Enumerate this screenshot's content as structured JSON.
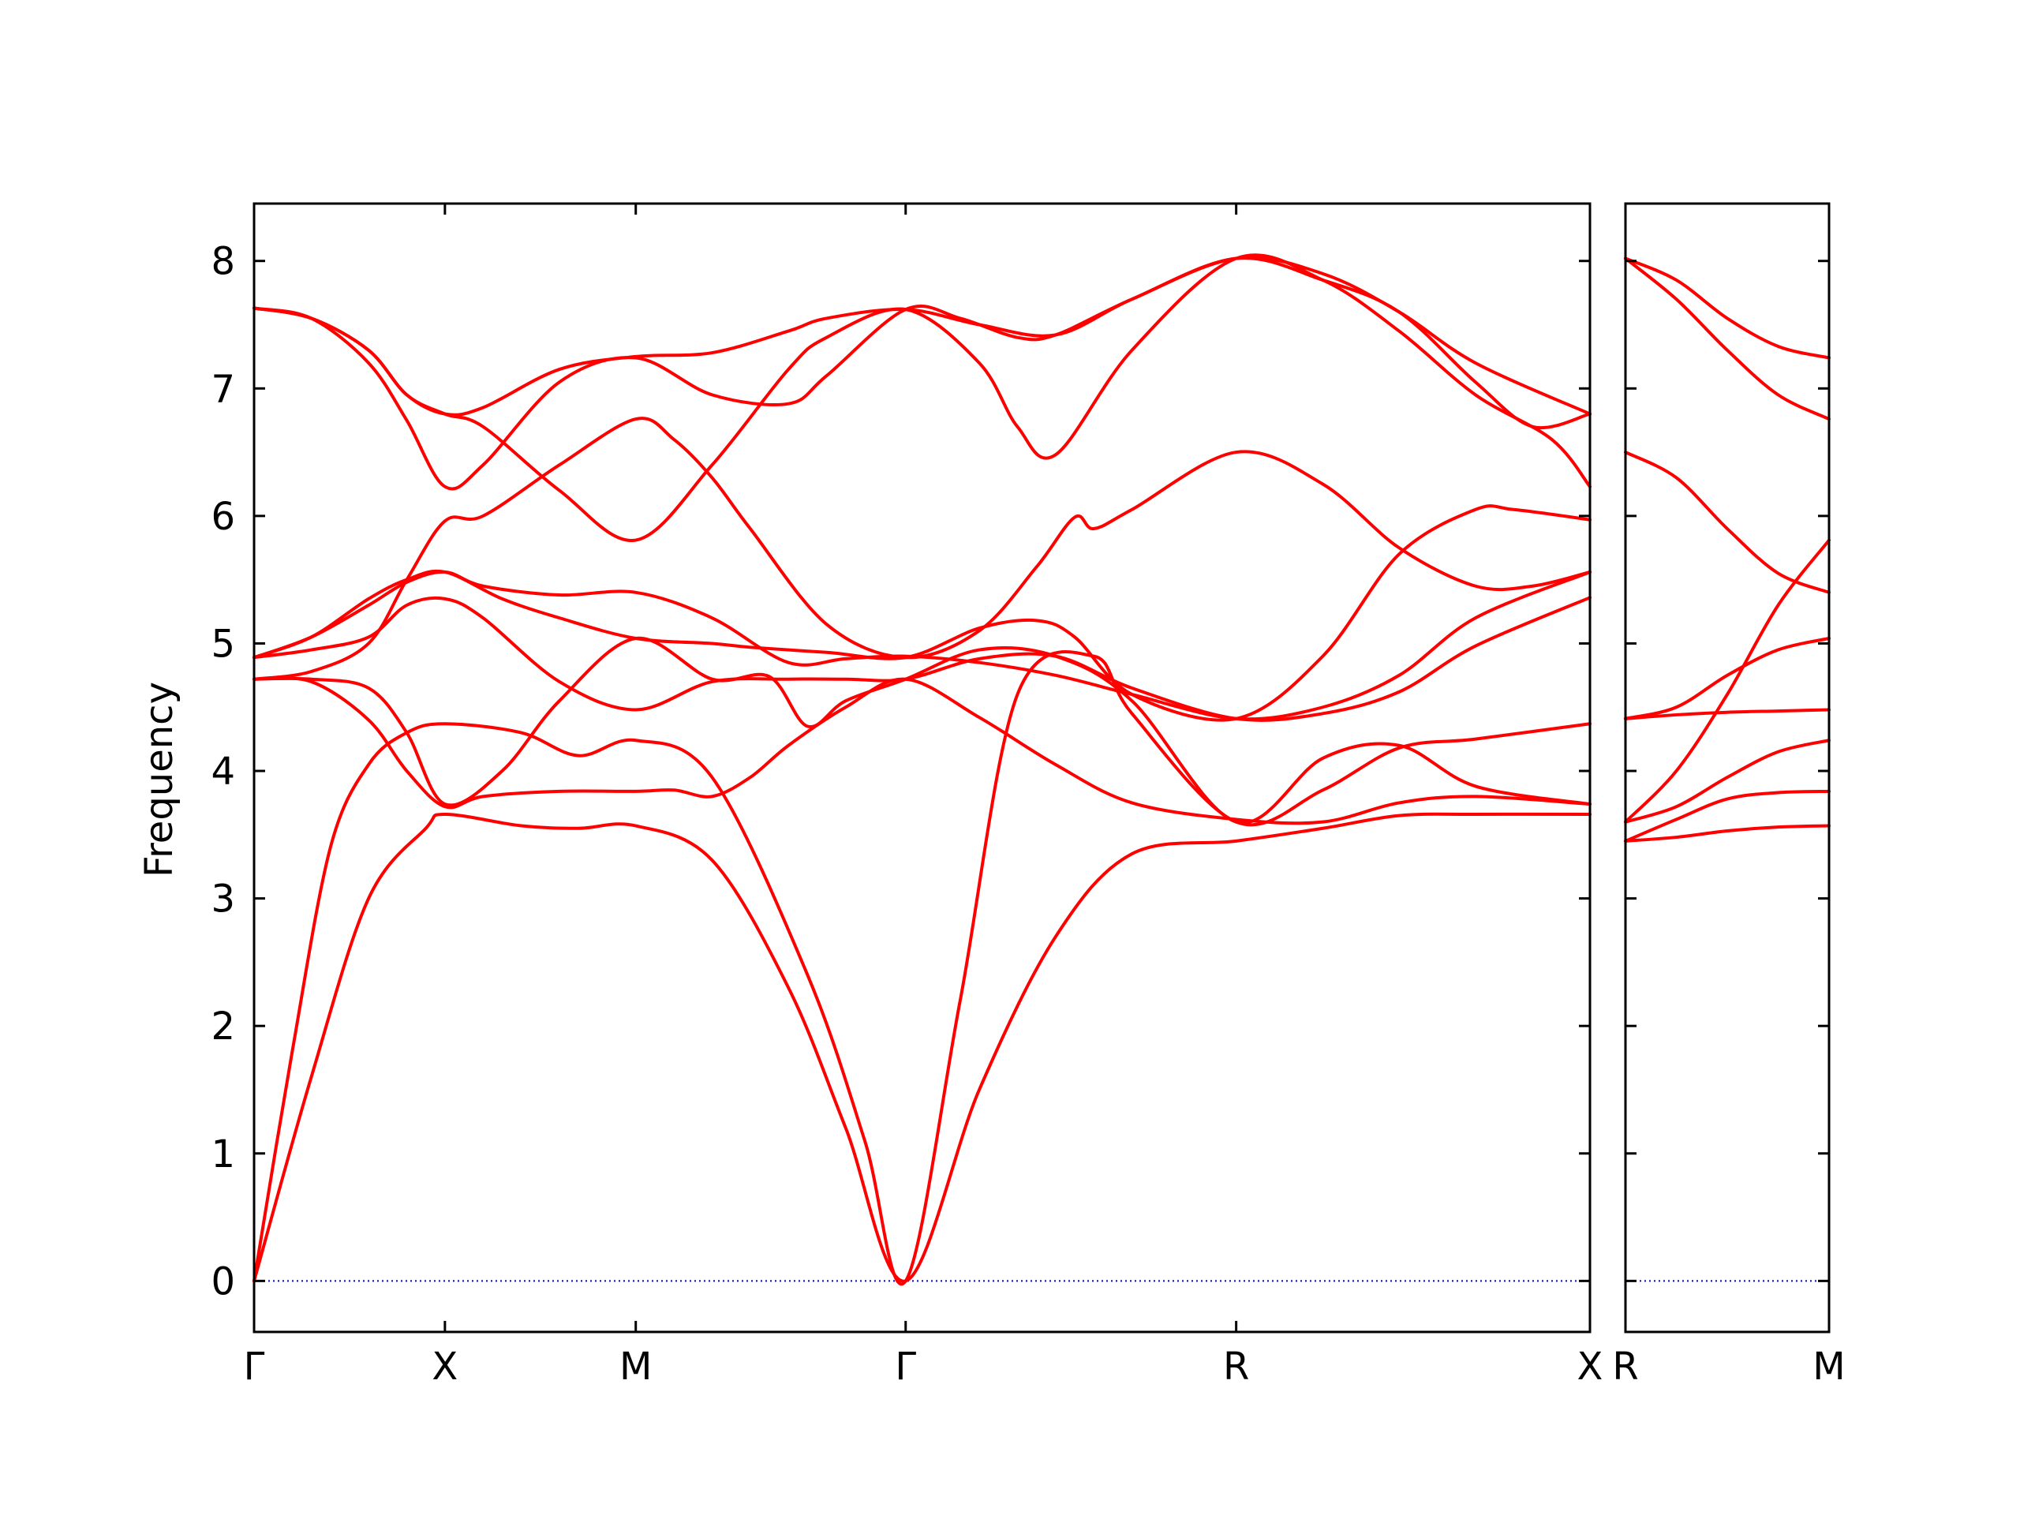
{
  "chart_data": {
    "type": "line",
    "ylabel": "Frequency",
    "ylim": [
      -0.4,
      8.45
    ],
    "yticks": [
      0,
      1,
      2,
      3,
      4,
      5,
      6,
      7,
      8
    ],
    "grid": false,
    "legend": "none",
    "colors": {
      "bands": "#ff0000",
      "zero_line": "#0000cc",
      "frame": "#000000"
    },
    "panels": [
      {
        "xlim": [
          0,
          3.5
        ],
        "ticks": [
          {
            "x": 0.0,
            "label": "Γ"
          },
          {
            "x": 0.5,
            "label": "X"
          },
          {
            "x": 1.0,
            "label": "M"
          },
          {
            "x": 1.7071,
            "label": "Γ"
          },
          {
            "x": 2.5731,
            "label": "R"
          },
          {
            "x": 3.5,
            "label": "X"
          }
        ],
        "series": [
          {
            "x": [
              0,
              0.15,
              0.3,
              0.45,
              0.5,
              0.7,
              0.85,
              1.0,
              1.2,
              1.4,
              1.55,
              1.7071,
              1.9,
              2.1,
              2.3,
              2.5731,
              2.8,
              3.0,
              3.2,
              3.5
            ],
            "y": [
              0,
              1.6,
              3.0,
              3.55,
              3.66,
              3.57,
              3.55,
              3.57,
              3.3,
              2.3,
              1.2,
              0,
              1.5,
              2.7,
              3.35,
              3.45,
              3.55,
              3.65,
              3.66,
              3.66
            ]
          },
          {
            "x": [
              0,
              0.1,
              0.2,
              0.3,
              0.4,
              0.5,
              0.7,
              0.85,
              1.0,
              1.2,
              1.45,
              1.6,
              1.7071,
              1.85,
              2.0,
              2.2,
              2.3,
              2.5731,
              2.8,
              3.0,
              3.2,
              3.5
            ],
            "y": [
              0,
              1.8,
              3.4,
              4.05,
              4.3,
              4.37,
              4.3,
              4.12,
              4.24,
              3.95,
              2.4,
              1.1,
              0,
              2.2,
              4.6,
              4.9,
              4.45,
              3.6,
              3.85,
              4.18,
              4.25,
              4.37
            ]
          },
          {
            "x": [
              0,
              0.15,
              0.3,
              0.4,
              0.5,
              0.6,
              0.8,
              1.0,
              1.1,
              1.2,
              1.3,
              1.4,
              1.55,
              1.7071,
              1.9,
              2.1,
              2.3,
              2.5731,
              2.8,
              3.0,
              3.2,
              3.5
            ],
            "y": [
              4.72,
              4.7,
              4.4,
              4.0,
              3.72,
              3.8,
              3.84,
              3.84,
              3.85,
              3.8,
              3.95,
              4.2,
              4.5,
              4.72,
              4.42,
              4.05,
              3.75,
              3.62,
              3.6,
              3.75,
              3.8,
              3.74
            ]
          },
          {
            "x": [
              0,
              0.15,
              0.3,
              0.4,
              0.5,
              0.65,
              0.8,
              1.0,
              1.2,
              1.35,
              1.45,
              1.55,
              1.7071,
              1.9,
              2.1,
              2.3,
              2.5731,
              2.8,
              3.0,
              3.2,
              3.5
            ],
            "y": [
              4.72,
              4.72,
              4.65,
              4.3,
              3.74,
              4.0,
              4.55,
              5.04,
              4.72,
              4.74,
              4.35,
              4.55,
              4.72,
              4.95,
              4.9,
              4.55,
              3.6,
              4.1,
              4.2,
              3.88,
              3.74
            ]
          },
          {
            "x": [
              0,
              0.15,
              0.3,
              0.4,
              0.5,
              0.6,
              0.8,
              1.0,
              1.2,
              1.4,
              1.55,
              1.7071,
              1.9,
              2.1,
              2.3,
              2.5731,
              2.8,
              3.0,
              3.2,
              3.5
            ],
            "y": [
              4.89,
              4.95,
              5.05,
              5.3,
              5.35,
              5.2,
              4.7,
              4.48,
              4.7,
              4.72,
              4.72,
              4.72,
              4.88,
              4.9,
              4.65,
              4.41,
              4.45,
              4.62,
              4.98,
              5.36
            ]
          },
          {
            "x": [
              0,
              0.15,
              0.3,
              0.4,
              0.5,
              0.6,
              0.8,
              1.0,
              1.2,
              1.4,
              1.55,
              1.7071,
              1.9,
              2.1,
              2.3,
              2.5731,
              2.8,
              3.0,
              3.2,
              3.5
            ],
            "y": [
              4.89,
              5.05,
              5.3,
              5.48,
              5.56,
              5.45,
              5.38,
              5.4,
              5.2,
              4.85,
              4.88,
              4.9,
              4.85,
              4.75,
              4.6,
              4.41,
              4.5,
              4.75,
              5.2,
              5.56
            ]
          },
          {
            "x": [
              0,
              0.15,
              0.3,
              0.4,
              0.5,
              0.65,
              0.8,
              1.0,
              1.2,
              1.3,
              1.5,
              1.7071,
              1.9,
              2.05,
              2.15,
              2.3,
              2.5731,
              2.8,
              3.0,
              3.2,
              3.3,
              3.5
            ],
            "y": [
              4.89,
              5.05,
              5.35,
              5.5,
              5.56,
              5.35,
              5.2,
              5.04,
              5.0,
              4.97,
              4.93,
              4.89,
              5.12,
              5.18,
              5.05,
              4.6,
              4.41,
              4.9,
              5.7,
              6.05,
              6.05,
              5.97
            ]
          },
          {
            "x": [
              0,
              0.15,
              0.3,
              0.4,
              0.5,
              0.6,
              0.8,
              1.0,
              1.1,
              1.2,
              1.3,
              1.5,
              1.7071,
              1.9,
              2.05,
              2.15,
              2.2,
              2.3,
              2.5731,
              2.8,
              3.0,
              3.2,
              3.35,
              3.5
            ],
            "y": [
              4.72,
              4.78,
              5.0,
              5.5,
              5.96,
              6.0,
              6.4,
              6.76,
              6.6,
              6.3,
              5.9,
              5.15,
              4.89,
              5.1,
              5.6,
              5.99,
              5.9,
              6.05,
              6.5,
              6.25,
              5.75,
              5.45,
              5.45,
              5.56
            ]
          },
          {
            "x": [
              0,
              0.15,
              0.3,
              0.4,
              0.5,
              0.6,
              0.8,
              1.0,
              1.2,
              1.4,
              1.5,
              1.7071,
              1.85,
              2.0,
              2.1,
              2.3,
              2.5731,
              2.8,
              3.0,
              3.2,
              3.35,
              3.5
            ],
            "y": [
              7.63,
              7.55,
              7.2,
              6.75,
              6.23,
              6.4,
              7.05,
              7.24,
              6.95,
              6.88,
              7.1,
              7.62,
              7.55,
              7.4,
              7.42,
              7.7,
              8.02,
              7.85,
              7.6,
              7.05,
              6.7,
              6.8
            ]
          },
          {
            "x": [
              0,
              0.15,
              0.3,
              0.4,
              0.5,
              0.6,
              0.8,
              1.0,
              1.2,
              1.4,
              1.5,
              1.7071,
              1.9,
              2.0,
              2.1,
              2.3,
              2.5731,
              2.8,
              3.0,
              3.2,
              3.4,
              3.5
            ],
            "y": [
              7.63,
              7.55,
              7.3,
              6.95,
              6.8,
              6.7,
              6.2,
              5.81,
              6.4,
              7.15,
              7.4,
              7.62,
              7.2,
              6.7,
              6.48,
              7.3,
              8.02,
              7.85,
              7.45,
              6.95,
              6.6,
              6.23
            ]
          },
          {
            "x": [
              0,
              0.15,
              0.3,
              0.4,
              0.5,
              0.6,
              0.8,
              1.0,
              1.2,
              1.4,
              1.5,
              1.7071,
              1.9,
              2.1,
              2.3,
              2.5731,
              2.8,
              3.0,
              3.2,
              3.5
            ],
            "y": [
              7.63,
              7.55,
              7.3,
              6.95,
              6.8,
              6.85,
              7.15,
              7.25,
              7.28,
              7.45,
              7.55,
              7.62,
              7.5,
              7.42,
              7.7,
              8.02,
              7.9,
              7.6,
              7.2,
              6.8
            ]
          }
        ]
      },
      {
        "xlim": [
          0,
          1.0
        ],
        "ticks": [
          {
            "x": 0.0,
            "label": "R"
          },
          {
            "x": 1.0,
            "label": "M"
          }
        ],
        "series": [
          {
            "x": [
              0,
              0.25,
              0.5,
              0.75,
              1.0
            ],
            "y": [
              3.45,
              3.48,
              3.53,
              3.56,
              3.57
            ]
          },
          {
            "x": [
              0,
              0.25,
              0.5,
              0.75,
              1.0
            ],
            "y": [
              3.45,
              3.62,
              3.78,
              3.83,
              3.84
            ]
          },
          {
            "x": [
              0,
              0.25,
              0.5,
              0.75,
              1.0
            ],
            "y": [
              3.6,
              3.72,
              3.95,
              4.15,
              4.24
            ]
          },
          {
            "x": [
              0,
              0.25,
              0.5,
              0.75,
              1.0
            ],
            "y": [
              3.6,
              4.0,
              4.6,
              5.3,
              5.81
            ]
          },
          {
            "x": [
              0,
              0.25,
              0.5,
              0.75,
              1.0
            ],
            "y": [
              4.41,
              4.44,
              4.46,
              4.47,
              4.48
            ]
          },
          {
            "x": [
              0,
              0.25,
              0.5,
              0.75,
              1.0
            ],
            "y": [
              4.41,
              4.5,
              4.75,
              4.95,
              5.04
            ]
          },
          {
            "x": [
              0,
              0.25,
              0.5,
              0.75,
              1.0
            ],
            "y": [
              6.5,
              6.3,
              5.9,
              5.55,
              5.4
            ]
          },
          {
            "x": [
              0,
              0.25,
              0.5,
              0.75,
              1.0
            ],
            "y": [
              8.02,
              7.7,
              7.3,
              6.95,
              6.76
            ]
          },
          {
            "x": [
              0,
              0.25,
              0.5,
              0.75,
              1.0
            ],
            "y": [
              8.02,
              7.85,
              7.55,
              7.33,
              7.24
            ]
          }
        ]
      }
    ]
  }
}
